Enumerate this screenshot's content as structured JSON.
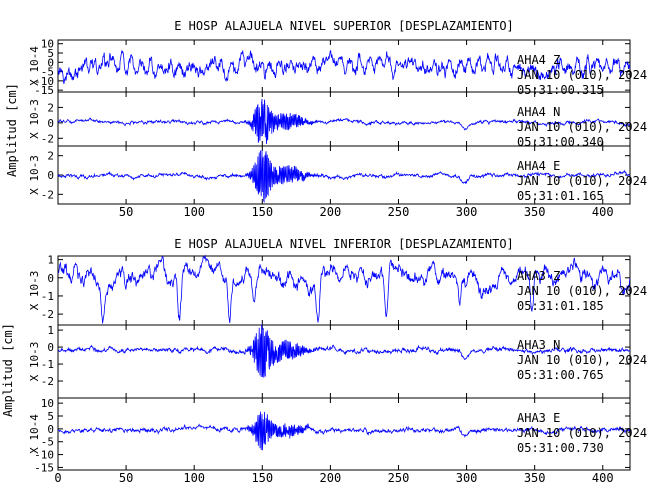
{
  "colors": {
    "trace": "#0000ff",
    "axis": "#000000",
    "background": "#ffffff"
  },
  "chart_data": [
    {
      "type": "line",
      "title": "E HOSP ALAJUELA NIVEL SUPERIOR [DESPLAZAMIENTO]",
      "ylabel": "Amplitud [cm]",
      "xlim": [
        0,
        420
      ],
      "x_ticks": [
        50,
        100,
        150,
        200,
        250,
        300,
        350,
        400
      ],
      "panels": [
        {
          "scale_label": "X 10-4",
          "ylim": [
            -16,
            12
          ],
          "y_ticks": [
            10,
            5,
            0,
            -5,
            -10,
            -15
          ],
          "labels": [
            "AHA4  Z",
            "JAN 10 (010), 2024",
            "05:31:00.315"
          ],
          "character": "broadband",
          "event_amplitude": 0.3
        },
        {
          "scale_label": "X 10-3",
          "ylim": [
            -3,
            4
          ],
          "y_ticks": [
            2,
            0,
            -2
          ],
          "labels": [
            "AHA4  N",
            "JAN 10 (010), 2024",
            "05:31:00.340"
          ],
          "character": "event",
          "event_amplitude": 3.0
        },
        {
          "scale_label": "X 10-3",
          "ylim": [
            -3,
            3
          ],
          "y_ticks": [
            2,
            0,
            -2
          ],
          "labels": [
            "AHA4  E",
            "JAN 10 (010), 2024",
            "05:31:01.165"
          ],
          "character": "event",
          "event_amplitude": 2.6
        }
      ]
    },
    {
      "type": "line",
      "title": "E HOSP ALAJUELA NIVEL INFERIOR [DESPLAZAMIENTO]",
      "ylabel": "Amplitud [cm]",
      "xlim": [
        0,
        420
      ],
      "x_ticks": [
        0,
        50,
        100,
        150,
        200,
        250,
        300,
        350,
        400
      ],
      "panels": [
        {
          "scale_label": "X 10-3",
          "ylim": [
            -2.6,
            1.2
          ],
          "y_ticks": [
            1,
            0,
            -1,
            -2
          ],
          "labels": [
            "AHA3  Z",
            "JAN 10 (010), 2024",
            "05:31:01.185"
          ],
          "character": "spiky",
          "spikes_at": [
            33,
            89,
            126,
            144,
            191,
            241,
            295,
            348
          ]
        },
        {
          "scale_label": "X 10-3",
          "ylim": [
            -3,
            1.3
          ],
          "y_ticks": [
            1,
            0,
            -1,
            -2
          ],
          "labels": [
            "AHA3  N",
            "JAN 10 (010), 2024",
            "05:31:00.765"
          ],
          "character": "event",
          "event_amplitude": 1.6
        },
        {
          "scale_label": "X 10-4",
          "ylim": [
            -16,
            12
          ],
          "y_ticks": [
            10,
            5,
            0,
            -5,
            -10,
            -15
          ],
          "labels": [
            "AHA3  E",
            "JAN 10 (010), 2024",
            "05:31:00.730"
          ],
          "character": "event",
          "event_amplitude": 7
        }
      ]
    }
  ]
}
